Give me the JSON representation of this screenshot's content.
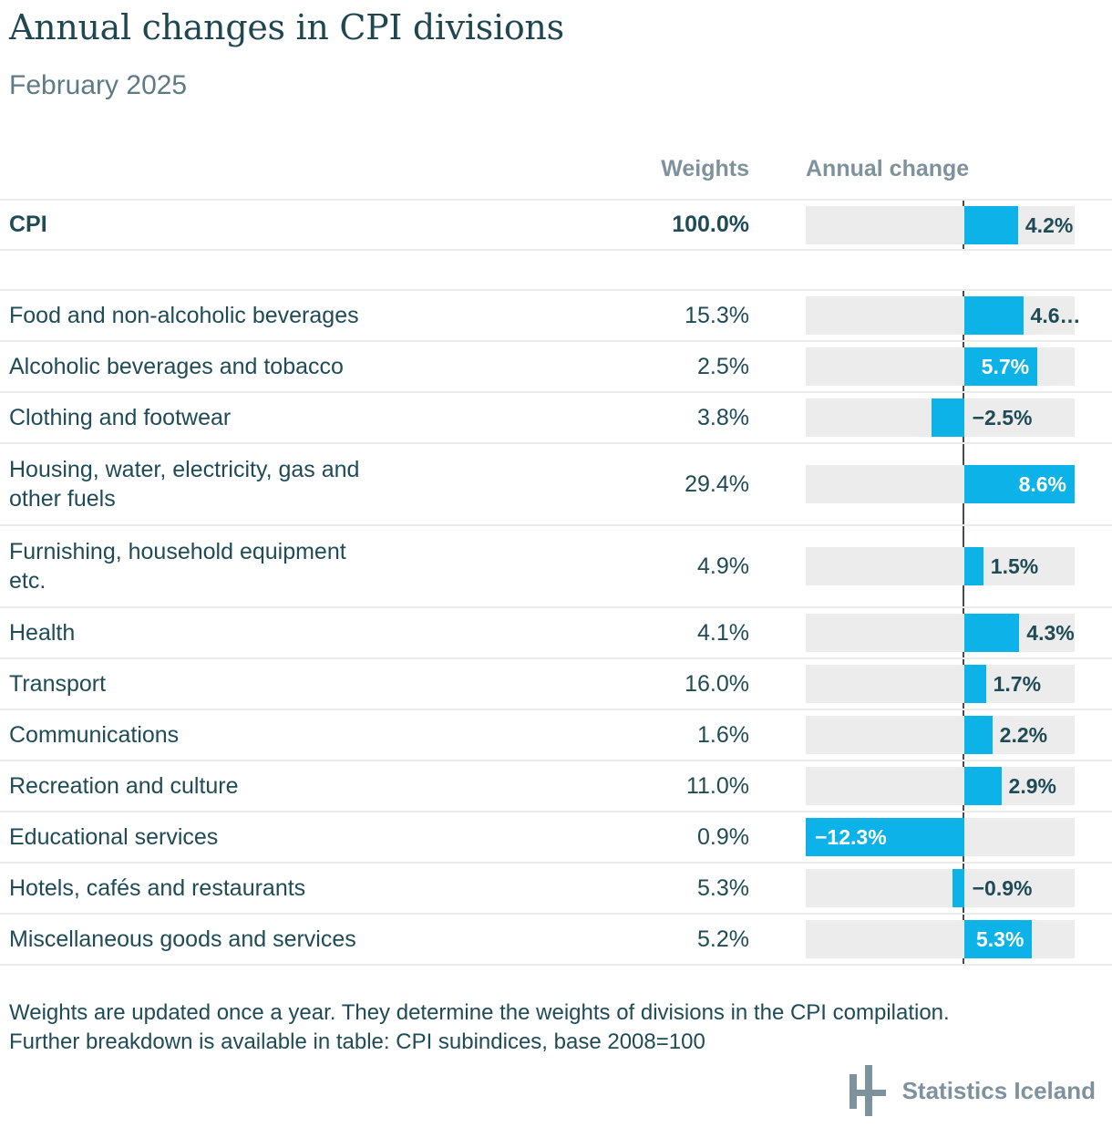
{
  "title": "Annual changes in CPI divisions",
  "subtitle": "February 2025",
  "columns": {
    "weights": "Weights",
    "annual_change": "Annual change"
  },
  "axis": {
    "min": -12.3,
    "max": 8.6
  },
  "cpi_row": {
    "label": "CPI",
    "weight": "100.0%",
    "value": 4.2,
    "value_label": "4.2%",
    "label_position": "outside"
  },
  "rows": [
    {
      "label": "Food and non-alcoholic beverages",
      "weight": "15.3%",
      "value": 4.6,
      "value_label": "4.6…",
      "label_position": "outside"
    },
    {
      "label": "Alcoholic beverages and tobacco",
      "weight": "2.5%",
      "value": 5.7,
      "value_label": "5.7%",
      "label_position": "inside"
    },
    {
      "label": "Clothing and footwear",
      "weight": "3.8%",
      "value": -2.5,
      "value_label": "−2.5%",
      "label_position": "outside"
    },
    {
      "label": "Housing, water, electricity, gas and\nother fuels",
      "weight": "29.4%",
      "value": 8.6,
      "value_label": "8.6%",
      "label_position": "inside"
    },
    {
      "label": "Furnishing, household equipment\netc.",
      "weight": "4.9%",
      "value": 1.5,
      "value_label": "1.5%",
      "label_position": "outside"
    },
    {
      "label": "Health",
      "weight": "4.1%",
      "value": 4.3,
      "value_label": "4.3%",
      "label_position": "outside"
    },
    {
      "label": "Transport",
      "weight": "16.0%",
      "value": 1.7,
      "value_label": "1.7%",
      "label_position": "outside"
    },
    {
      "label": "Communications",
      "weight": "1.6%",
      "value": 2.2,
      "value_label": "2.2%",
      "label_position": "outside"
    },
    {
      "label": "Recreation and culture",
      "weight": "11.0%",
      "value": 2.9,
      "value_label": "2.9%",
      "label_position": "outside"
    },
    {
      "label": "Educational services",
      "weight": "0.9%",
      "value": -12.3,
      "value_label": "−12.3%",
      "label_position": "inside"
    },
    {
      "label": "Hotels, cafés and restaurants",
      "weight": "5.3%",
      "value": -0.9,
      "value_label": "−0.9%",
      "label_position": "outside"
    },
    {
      "label": "Miscellaneous goods and services",
      "weight": "5.2%",
      "value": 5.3,
      "value_label": "5.3%",
      "label_position": "inside"
    }
  ],
  "footnote_lines": [
    "Weights are updated once a year. They determine the weights of divisions in the CPI compilation.",
    "Further breakdown is available in table: CPI subindices, base 2008=100"
  ],
  "logo": {
    "text": "Statistics Iceland"
  },
  "colors": {
    "bar_blue": "#0cb2e8",
    "track_gray": "#ececec",
    "text_dark_teal": "#1f4b57",
    "header_gray": "#7e929d",
    "zero_line": "#474b4f",
    "divider": "#ebebeb"
  },
  "chart_data": {
    "type": "bar",
    "orientation": "horizontal",
    "title": "Annual changes in CPI divisions",
    "subtitle": "February 2025",
    "categories": [
      "CPI",
      "Food and non-alcoholic beverages",
      "Alcoholic beverages and tobacco",
      "Clothing and footwear",
      "Housing, water, electricity, gas and other fuels",
      "Furnishing, household equipment etc.",
      "Health",
      "Transport",
      "Communications",
      "Recreation and culture",
      "Educational services",
      "Hotels, cafés and restaurants",
      "Miscellaneous goods and services"
    ],
    "series": [
      {
        "name": "Weights",
        "unit": "%",
        "values": [
          100.0,
          15.3,
          2.5,
          3.8,
          29.4,
          4.9,
          4.1,
          16.0,
          1.6,
          11.0,
          0.9,
          5.3,
          5.2
        ]
      },
      {
        "name": "Annual change",
        "unit": "%",
        "values": [
          4.2,
          4.6,
          5.7,
          -2.5,
          8.6,
          1.5,
          4.3,
          1.7,
          2.2,
          2.9,
          -12.3,
          -0.9,
          5.3
        ]
      }
    ],
    "xlabel": "Annual change (%)",
    "ylabel": "",
    "xlim": [
      -12.3,
      8.6
    ],
    "grid": false,
    "legend_position": "none"
  }
}
